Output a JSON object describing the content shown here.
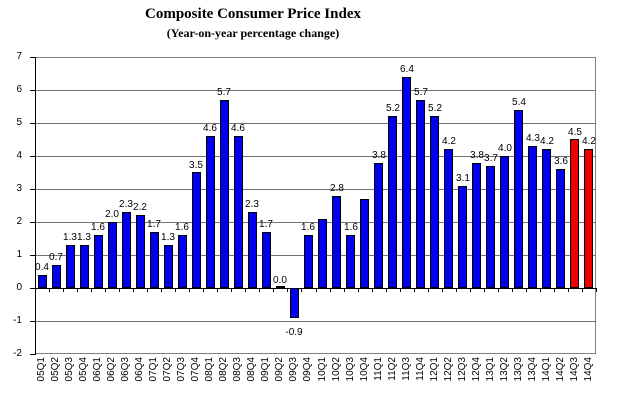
{
  "title": "Composite Consumer Price Index",
  "subtitle": "(Year-on-year percentage change)",
  "chart_data": {
    "type": "bar",
    "title": "Composite Consumer Price Index",
    "subtitle": "(Year-on-year percentage change)",
    "categories": [
      "05Q1",
      "05Q2",
      "05Q3",
      "05Q4",
      "06Q1",
      "06Q2",
      "06Q3",
      "06Q4",
      "07Q1",
      "07Q2",
      "07Q3",
      "07Q4",
      "08Q1",
      "08Q2",
      "08Q3",
      "08Q4",
      "09Q1",
      "09Q2",
      "09Q3",
      "09Q4",
      "10Q1",
      "10Q2",
      "10Q3",
      "10Q4",
      "11Q1",
      "11Q2",
      "11Q3",
      "11Q4",
      "12Q1",
      "12Q2",
      "12Q3",
      "12Q4",
      "13Q1",
      "13Q2",
      "13Q3",
      "13Q4",
      "14Q1",
      "14Q2",
      "14Q3",
      "14Q4"
    ],
    "values": [
      0.4,
      0.7,
      1.3,
      1.3,
      1.6,
      2.0,
      2.3,
      2.2,
      1.7,
      1.3,
      1.6,
      3.5,
      4.6,
      5.7,
      4.6,
      2.3,
      1.7,
      0.0,
      -0.9,
      1.6,
      2.1,
      2.8,
      1.6,
      2.7,
      3.8,
      5.2,
      6.4,
      5.7,
      5.2,
      4.2,
      3.1,
      3.8,
      3.7,
      4.0,
      5.4,
      4.3,
      4.2,
      3.6,
      4.5,
      4.2
    ],
    "data_labels": [
      "0.4",
      "0.7",
      "1.3",
      "1.3",
      "1.6",
      "2.0",
      "2.3",
      "2.2",
      "1.7",
      "1.3",
      "1.6",
      "3.5",
      "4.6",
      "5.7",
      "4.6",
      "2.3",
      "1.7",
      "0.0",
      "-0.9",
      "1.6",
      "",
      "2.8",
      "1.6",
      "",
      "3.8",
      "5.2",
      "6.4",
      "5.7",
      "5.2",
      "4.2",
      "3.1",
      "3.8",
      "3.7",
      "4.0",
      "5.4",
      "4.3",
      "4.2",
      "3.6",
      "4.5",
      "4.2"
    ],
    "bar_color": "#0000EE",
    "highlight_color": "#EE0000",
    "highlight_categories": [
      "14Q3",
      "14Q4"
    ],
    "ylim": [
      -2,
      7
    ],
    "ytick_step": 1,
    "yticks": [
      7,
      6,
      5,
      4,
      3,
      2,
      1,
      0,
      -1,
      -2
    ],
    "grid": true,
    "legend": "none",
    "xlabel": "",
    "ylabel": ""
  }
}
